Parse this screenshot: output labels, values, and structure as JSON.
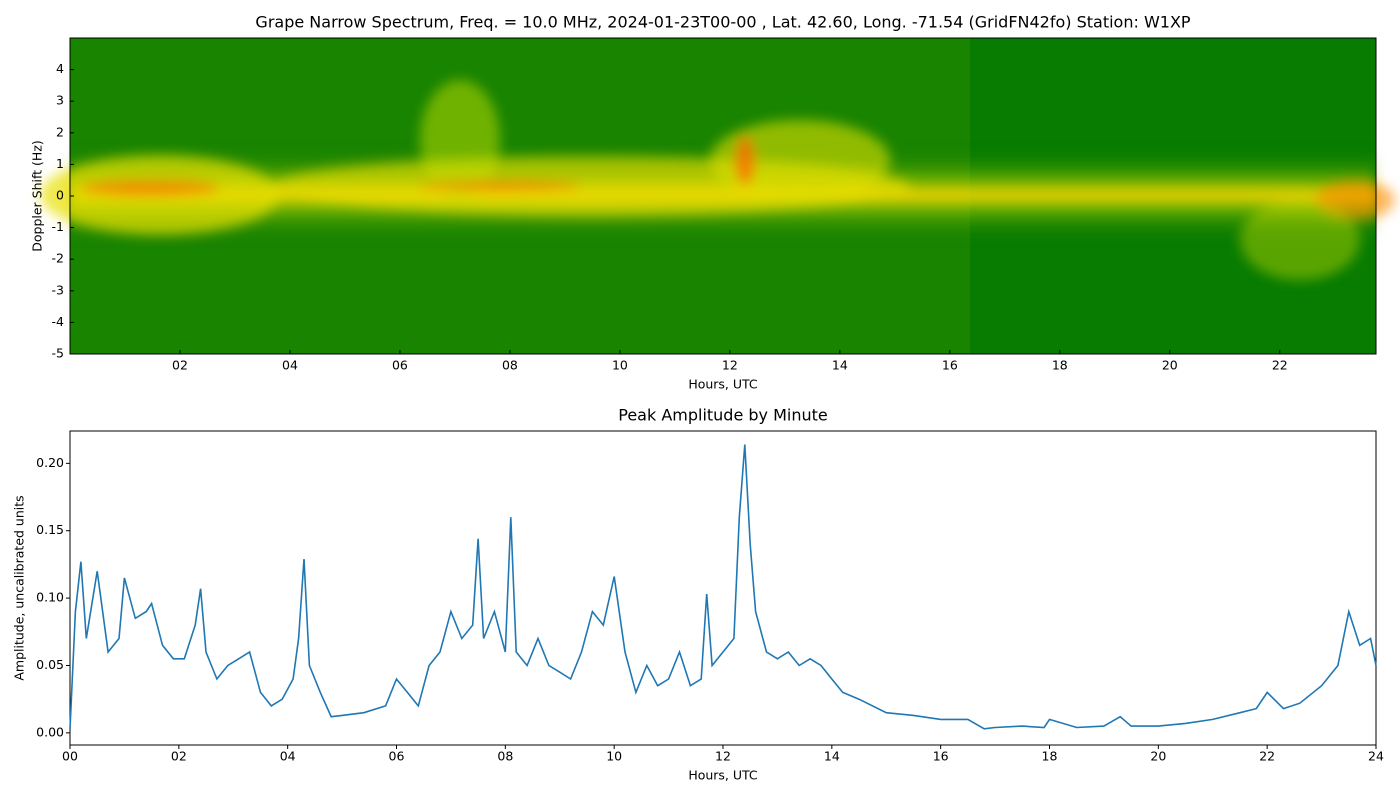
{
  "chart_data": [
    {
      "type": "spectrogram",
      "title": "Grape Narrow Spectrum, Freq. = 10.0 MHz, 2024-01-23T00-00 , Lat.  42.60, Long. -71.54 (GridFN42fo) Station: W1XP",
      "xlabel": "Hours, UTC",
      "ylabel": "Doppler Shift (Hz)",
      "xlim": [
        0,
        23.75
      ],
      "ylim": [
        -5,
        5
      ],
      "xticks": [
        {
          "value": 2,
          "label": "02"
        },
        {
          "value": 4,
          "label": "04"
        },
        {
          "value": 6,
          "label": "06"
        },
        {
          "value": 8,
          "label": "08"
        },
        {
          "value": 10,
          "label": "10"
        },
        {
          "value": 12,
          "label": "12"
        },
        {
          "value": 14,
          "label": "14"
        },
        {
          "value": 16,
          "label": "16"
        },
        {
          "value": 18,
          "label": "18"
        },
        {
          "value": 20,
          "label": "20"
        },
        {
          "value": 22,
          "label": "22"
        }
      ],
      "yticks": [
        -5,
        -4,
        -3,
        -2,
        -1,
        0,
        1,
        2,
        3,
        4
      ]
    },
    {
      "type": "line",
      "title": "Peak Amplitude by Minute",
      "xlabel": "Hours, UTC",
      "ylabel": "Amplitude, uncalibrated units",
      "xlim": [
        0,
        24
      ],
      "ylim": [
        -0.009,
        0.224
      ],
      "xticks": [
        {
          "value": 0,
          "label": "00"
        },
        {
          "value": 2,
          "label": "02"
        },
        {
          "value": 4,
          "label": "04"
        },
        {
          "value": 6,
          "label": "06"
        },
        {
          "value": 8,
          "label": "08"
        },
        {
          "value": 10,
          "label": "10"
        },
        {
          "value": 12,
          "label": "12"
        },
        {
          "value": 14,
          "label": "14"
        },
        {
          "value": 16,
          "label": "16"
        },
        {
          "value": 18,
          "label": "18"
        },
        {
          "value": 20,
          "label": "20"
        },
        {
          "value": 22,
          "label": "22"
        },
        {
          "value": 24,
          "label": "24"
        }
      ],
      "yticks": [
        {
          "value": 0,
          "label": "0.00"
        },
        {
          "value": 0.05,
          "label": "0.05"
        },
        {
          "value": 0.1,
          "label": "0.10"
        },
        {
          "value": 0.15,
          "label": "0.15"
        },
        {
          "value": 0.2,
          "label": "0.20"
        }
      ],
      "series": [
        {
          "color": "#1f77b4",
          "x": [
            0,
            0.1,
            0.2,
            0.3,
            0.5,
            0.7,
            0.9,
            1.0,
            1.2,
            1.4,
            1.5,
            1.7,
            1.9,
            2.1,
            2.3,
            2.4,
            2.5,
            2.7,
            2.9,
            3.1,
            3.3,
            3.5,
            3.7,
            3.9,
            4.1,
            4.2,
            4.3,
            4.4,
            4.6,
            4.8,
            5.0,
            5.4,
            5.8,
            6.0,
            6.2,
            6.4,
            6.6,
            6.8,
            7.0,
            7.2,
            7.4,
            7.5,
            7.6,
            7.8,
            8.0,
            8.1,
            8.2,
            8.4,
            8.6,
            8.8,
            9.0,
            9.2,
            9.4,
            9.6,
            9.8,
            10.0,
            10.2,
            10.4,
            10.6,
            10.8,
            11.0,
            11.2,
            11.4,
            11.6,
            11.7,
            11.8,
            12.0,
            12.2,
            12.3,
            12.4,
            12.5,
            12.6,
            12.8,
            13.0,
            13.2,
            13.4,
            13.6,
            13.8,
            14.0,
            14.2,
            14.5,
            15.0,
            15.5,
            16.0,
            16.5,
            16.8,
            17.0,
            17.5,
            17.9,
            18.0,
            18.5,
            19.0,
            19.3,
            19.5,
            20.0,
            20.5,
            21.0,
            21.5,
            21.8,
            22.0,
            22.3,
            22.6,
            23.0,
            23.3,
            23.5,
            23.7,
            23.9,
            24.0
          ],
          "values": [
            0.003,
            0.09,
            0.127,
            0.07,
            0.12,
            0.06,
            0.07,
            0.115,
            0.085,
            0.09,
            0.096,
            0.065,
            0.055,
            0.055,
            0.08,
            0.107,
            0.06,
            0.04,
            0.05,
            0.055,
            0.06,
            0.03,
            0.02,
            0.025,
            0.04,
            0.07,
            0.129,
            0.05,
            0.03,
            0.012,
            0.013,
            0.015,
            0.02,
            0.04,
            0.03,
            0.02,
            0.05,
            0.06,
            0.09,
            0.07,
            0.08,
            0.144,
            0.07,
            0.09,
            0.06,
            0.16,
            0.06,
            0.05,
            0.07,
            0.05,
            0.045,
            0.04,
            0.06,
            0.09,
            0.08,
            0.116,
            0.06,
            0.03,
            0.05,
            0.035,
            0.04,
            0.06,
            0.035,
            0.04,
            0.103,
            0.05,
            0.06,
            0.07,
            0.16,
            0.214,
            0.14,
            0.09,
            0.06,
            0.055,
            0.06,
            0.05,
            0.055,
            0.05,
            0.04,
            0.03,
            0.025,
            0.015,
            0.013,
            0.01,
            0.01,
            0.003,
            0.004,
            0.005,
            0.004,
            0.01,
            0.004,
            0.005,
            0.012,
            0.005,
            0.005,
            0.007,
            0.01,
            0.015,
            0.018,
            0.03,
            0.018,
            0.022,
            0.035,
            0.05,
            0.09,
            0.065,
            0.07,
            0.05
          ]
        }
      ]
    }
  ]
}
